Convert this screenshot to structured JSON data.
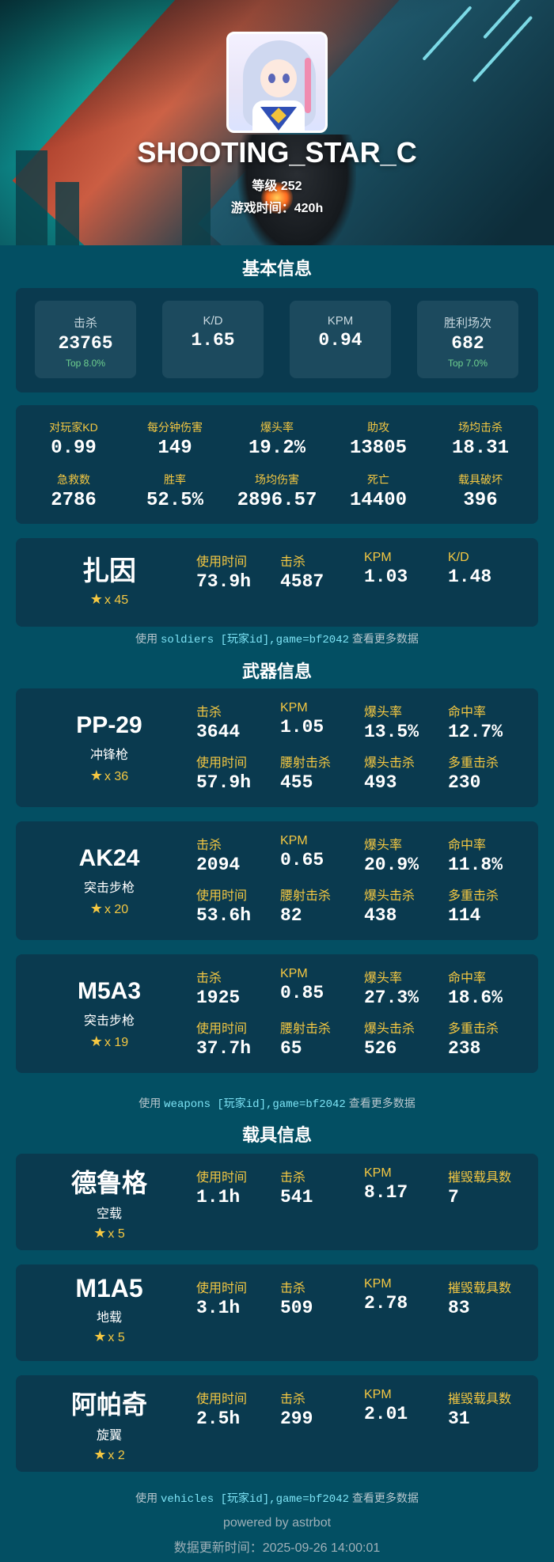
{
  "player": {
    "name": "SHOOTING_STAR_C",
    "level": "等级 252",
    "playtime": "游戏时间：420h"
  },
  "basic": {
    "title": "基本信息",
    "highlights": [
      {
        "label": "击杀",
        "value": "23765",
        "top": "Top 8.0%"
      },
      {
        "label": "K/D",
        "value": "1.65",
        "top": ""
      },
      {
        "label": "KPM",
        "value": "0.94",
        "top": ""
      },
      {
        "label": "胜利场次",
        "value": "682",
        "top": "Top 7.0%"
      }
    ],
    "grid": [
      {
        "label": "对玩家KD",
        "value": "0.99"
      },
      {
        "label": "每分钟伤害",
        "value": "149"
      },
      {
        "label": "爆头率",
        "value": "19.2%"
      },
      {
        "label": "助攻",
        "value": "13805"
      },
      {
        "label": "场均击杀",
        "value": "18.31"
      },
      {
        "label": "急救数",
        "value": "2786"
      },
      {
        "label": "胜率",
        "value": "52.5%"
      },
      {
        "label": "场均伤害",
        "value": "2896.57"
      },
      {
        "label": "死亡",
        "value": "14400"
      },
      {
        "label": "载具破坏",
        "value": "396"
      }
    ],
    "soldier": {
      "name": "扎因",
      "stars": "x 45",
      "stats": [
        {
          "label": "使用时间",
          "value": "73.9h"
        },
        {
          "label": "击杀",
          "value": "4587"
        },
        {
          "label": "KPM",
          "value": "1.03"
        },
        {
          "label": "K/D",
          "value": "1.48"
        }
      ]
    },
    "hint": {
      "pre": "使用",
      "cmd": "soldiers [玩家id],game=bf2042",
      "post": "查看更多数据"
    }
  },
  "weapons": {
    "title": "武器信息",
    "items": [
      {
        "name": "PP-29",
        "type": "冲锋枪",
        "stars": "x 36",
        "stats": [
          {
            "label": "击杀",
            "value": "3644"
          },
          {
            "label": "KPM",
            "value": "1.05"
          },
          {
            "label": "爆头率",
            "value": "13.5%"
          },
          {
            "label": "命中率",
            "value": "12.7%"
          },
          {
            "label": "使用时间",
            "value": "57.9h"
          },
          {
            "label": "腰射击杀",
            "value": "455"
          },
          {
            "label": "爆头击杀",
            "value": "493"
          },
          {
            "label": "多重击杀",
            "value": "230"
          }
        ]
      },
      {
        "name": "AK24",
        "type": "突击步枪",
        "stars": "x 20",
        "stats": [
          {
            "label": "击杀",
            "value": "2094"
          },
          {
            "label": "KPM",
            "value": "0.65"
          },
          {
            "label": "爆头率",
            "value": "20.9%"
          },
          {
            "label": "命中率",
            "value": "11.8%"
          },
          {
            "label": "使用时间",
            "value": "53.6h"
          },
          {
            "label": "腰射击杀",
            "value": "82"
          },
          {
            "label": "爆头击杀",
            "value": "438"
          },
          {
            "label": "多重击杀",
            "value": "114"
          }
        ]
      },
      {
        "name": "M5A3",
        "type": "突击步枪",
        "stars": "x 19",
        "stats": [
          {
            "label": "击杀",
            "value": "1925"
          },
          {
            "label": "KPM",
            "value": "0.85"
          },
          {
            "label": "爆头率",
            "value": "27.3%"
          },
          {
            "label": "命中率",
            "value": "18.6%"
          },
          {
            "label": "使用时间",
            "value": "37.7h"
          },
          {
            "label": "腰射击杀",
            "value": "65"
          },
          {
            "label": "爆头击杀",
            "value": "526"
          },
          {
            "label": "多重击杀",
            "value": "238"
          }
        ]
      }
    ],
    "hint": {
      "pre": "使用",
      "cmd": "weapons [玩家id],game=bf2042",
      "post": "查看更多数据"
    }
  },
  "vehicles": {
    "title": "载具信息",
    "items": [
      {
        "name": "德鲁格",
        "type": "空载",
        "stars": "x 5",
        "stats": [
          {
            "label": "使用时间",
            "value": "1.1h"
          },
          {
            "label": "击杀",
            "value": "541"
          },
          {
            "label": "KPM",
            "value": "8.17"
          },
          {
            "label": "摧毁载具数",
            "value": "7"
          }
        ]
      },
      {
        "name": "M1A5",
        "type": "地载",
        "stars": "x 5",
        "stats": [
          {
            "label": "使用时间",
            "value": "3.1h"
          },
          {
            "label": "击杀",
            "value": "509"
          },
          {
            "label": "KPM",
            "value": "2.78"
          },
          {
            "label": "摧毁载具数",
            "value": "83"
          }
        ]
      },
      {
        "name": "阿帕奇",
        "type": "旋翼",
        "stars": "x 2",
        "stats": [
          {
            "label": "使用时间",
            "value": "2.5h"
          },
          {
            "label": "击杀",
            "value": "299"
          },
          {
            "label": "KPM",
            "value": "2.01"
          },
          {
            "label": "摧毁载具数",
            "value": "31"
          }
        ]
      }
    ],
    "hint": {
      "pre": "使用",
      "cmd": "vehicles [玩家id],game=bf2042",
      "post": "查看更多数据"
    }
  },
  "footer": {
    "powered": "powered by astrbot",
    "updated": "数据更新时间：2025-09-26 14:00:01"
  },
  "icons": {
    "star": "star-icon"
  },
  "colors": {
    "background": "#034f63",
    "card": "#0a3a4f",
    "label_gold": "#f5c842",
    "top_green": "#6fd18f",
    "command_cyan": "#7de3f5"
  }
}
